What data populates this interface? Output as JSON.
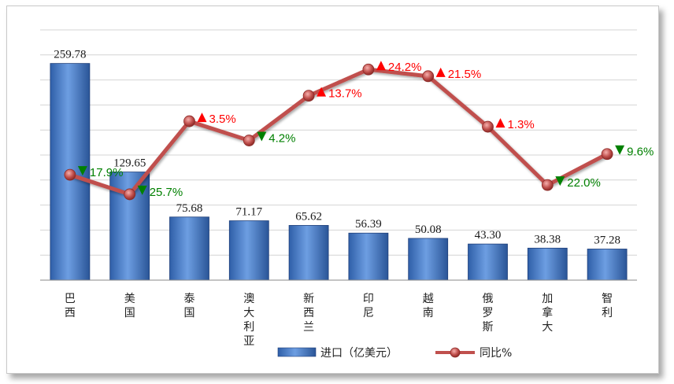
{
  "chart_data": {
    "type": "bar",
    "categories": [
      "巴西",
      "美国",
      "泰国",
      "澳大利亚",
      "新西兰",
      "印尼",
      "越南",
      "俄罗斯",
      "加拿大",
      "智利"
    ],
    "series": [
      {
        "name": "进口（亿美元）",
        "type": "bar",
        "values": [
          259.78,
          129.65,
          75.68,
          71.17,
          65.62,
          56.39,
          50.08,
          43.3,
          38.38,
          37.28
        ],
        "labels": [
          "259.78",
          "129.65",
          "75.68",
          "71.17",
          "65.62",
          "56.39",
          "50.08",
          "43.30",
          "38.38",
          "37.28"
        ],
        "color": "#3f78c8"
      },
      {
        "name": "同比%",
        "type": "line",
        "values": [
          -17.9,
          -25.7,
          3.5,
          -4.2,
          13.7,
          24.2,
          21.5,
          1.3,
          -22.0,
          -9.6
        ],
        "labels": [
          "17.9%",
          "25.7%",
          "3.5%",
          "4.2%",
          "13.7%",
          "24.2%",
          "21.5%",
          "1.3%",
          "22.0%",
          "9.6%"
        ],
        "direction": [
          "down",
          "down",
          "up",
          "down",
          "up",
          "up",
          "up",
          "up",
          "down",
          "down"
        ],
        "color": "#c0504d"
      }
    ],
    "ylim": [
      0,
      300
    ],
    "y2lim": [
      -60,
      40
    ],
    "grid": true,
    "legend": "bottom",
    "colors": {
      "up": "#ff0000",
      "down": "#008000"
    }
  }
}
